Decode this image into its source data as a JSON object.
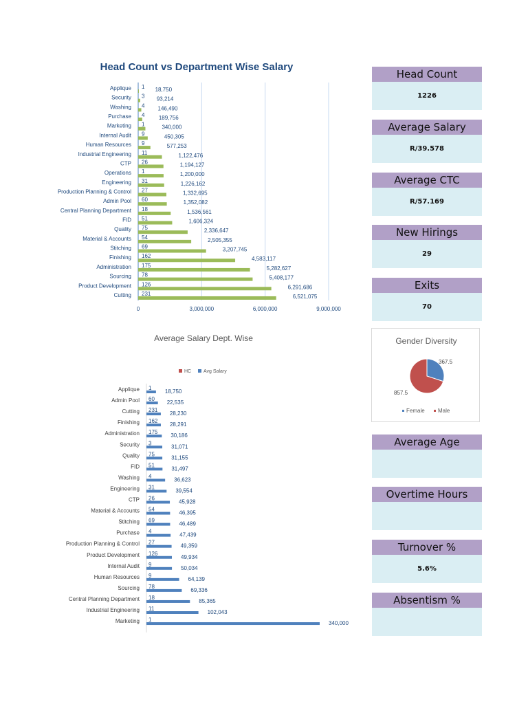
{
  "chart_data": [
    {
      "type": "bar",
      "title": "Head Count vs Department Wise Salary",
      "orientation": "horizontal",
      "categories": [
        "Applique",
        "Security",
        "Washing",
        "Purchase",
        "Marketing",
        "Internal Audit",
        "Human Resources",
        "Industrial Engineering",
        "CTP",
        "Operations",
        "Engineering",
        "Production Planning & Control",
        "Admin Pool",
        "Central Planning Department",
        "FID",
        "Quality",
        "Material & Accounts",
        "Stitching",
        "Finishing",
        "Administration",
        "Sourcing",
        "Product Development",
        "Cutting"
      ],
      "series": [
        {
          "values": [
            1,
            3,
            4,
            4,
            1,
            9,
            9,
            11,
            26,
            1,
            31,
            27,
            60,
            18,
            51,
            75,
            54,
            69,
            162,
            175,
            78,
            126,
            231
          ]
        },
        {
          "values": [
            18750,
            93214,
            146490,
            189756,
            340000,
            450305,
            577253,
            1122476,
            1194127,
            1200000,
            1226162,
            1332695,
            1352082,
            1536561,
            1606324,
            2336647,
            2505355,
            3207745,
            4583117,
            5282627,
            5408177,
            6291686,
            6521075
          ]
        }
      ],
      "value_labels": [
        "18,750",
        "93,214",
        "146,490",
        "189,756",
        "340,000",
        "450,305",
        "577,253",
        "1,122,476",
        "1,194,127",
        "1,200,000",
        "1,226,162",
        "1,332,695",
        "1,352,082",
        "1,536,561",
        "1,606,324",
        "2,336,647",
        "2,505,355",
        "3,207,745",
        "4,583,117",
        "5,282,627",
        "5,408,177",
        "6,291,686",
        "6,521,075"
      ],
      "xlim": [
        0,
        9000000
      ],
      "xticks": [
        "0",
        "3,000,000",
        "6,000,000",
        "9,000,000"
      ],
      "grid": true,
      "colors": [
        "#4f81bd",
        "#9bbb59"
      ]
    },
    {
      "type": "bar",
      "title": "Average Salary Dept. Wise",
      "orientation": "horizontal",
      "legend": "top",
      "categories": [
        "Applique",
        "Admin Pool",
        "Cutting",
        "Finishing",
        "Administration",
        "Security",
        "Quality",
        "FID",
        "Washing",
        "Engineering",
        "CTP",
        "Material & Accounts",
        "Stitching",
        "Purchase",
        "Production Planning & Control",
        "Product Development",
        "Internal Audit",
        "Human Resources",
        "Sourcing",
        "Central Planning Department",
        "Industrial Engineering",
        "Marketing"
      ],
      "series": [
        {
          "name": "HC",
          "values": [
            1,
            60,
            231,
            162,
            175,
            3,
            75,
            51,
            4,
            31,
            26,
            54,
            69,
            4,
            27,
            126,
            9,
            9,
            78,
            18,
            11,
            1
          ]
        },
        {
          "name": "Avg Salary",
          "values": [
            18750,
            22535,
            28230,
            28291,
            30186,
            31071,
            31155,
            31497,
            36623,
            39554,
            45928,
            46395,
            46489,
            47439,
            49359,
            49934,
            50034,
            64139,
            69336,
            85365,
            102043,
            340000
          ]
        }
      ],
      "value_labels": [
        "18,750",
        "22,535",
        "28,230",
        "28,291",
        "30,186",
        "31,071",
        "31,155",
        "31,497",
        "36,623",
        "39,554",
        "45,928",
        "46,395",
        "46,489",
        "47,439",
        "49,359",
        "49,934",
        "50,034",
        "64,139",
        "69,336",
        "85,365",
        "102,043",
        "340,000"
      ],
      "xlim": [
        0,
        340000
      ],
      "colors": [
        "#c0504d",
        "#4f81bd"
      ]
    },
    {
      "type": "pie",
      "title": "Gender Diversity",
      "legend": "bottom",
      "categories": [
        "Female",
        "Male"
      ],
      "values": [
        367.5,
        857.5
      ],
      "value_labels": [
        "367.5",
        "857.5"
      ],
      "colors": [
        "#4f81bd",
        "#c0504d"
      ]
    }
  ],
  "kpis": [
    {
      "label": "Head Count",
      "value": "1226"
    },
    {
      "label": "Average Salary",
      "value": "R/39.578"
    },
    {
      "label": "Average CTC",
      "value": "R/57.169"
    },
    {
      "label": "New Hirings",
      "value": "29"
    },
    {
      "label": "Exits",
      "value": "70"
    },
    {
      "label": "Average Age",
      "value": ""
    },
    {
      "label": "Overtime Hours",
      "value": ""
    },
    {
      "label": "Turnover %",
      "value": "5.6%"
    },
    {
      "label": "Absentism %",
      "value": ""
    }
  ]
}
